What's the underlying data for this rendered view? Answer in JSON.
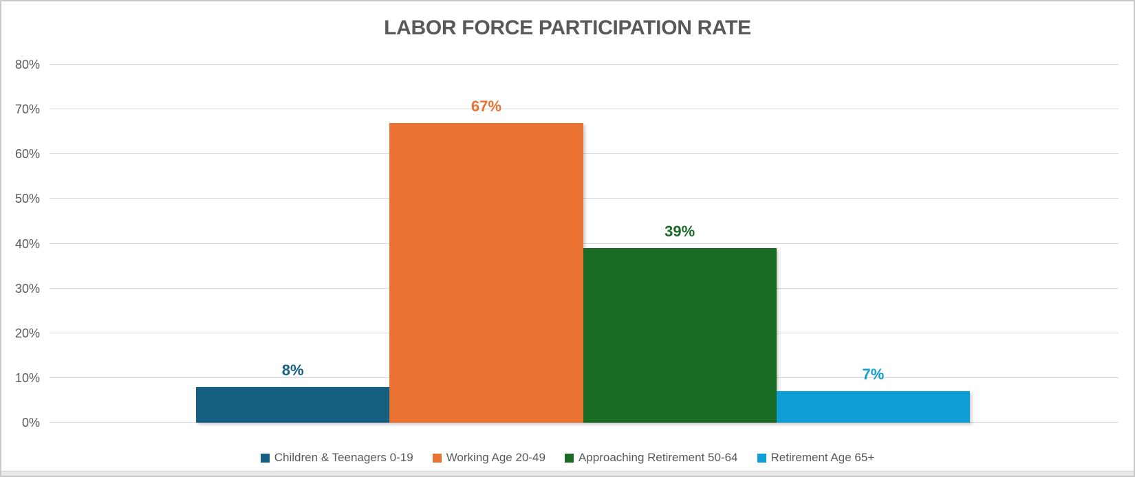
{
  "chart_data": {
    "type": "bar",
    "title": "LABOR FORCE PARTICIPATION RATE",
    "categories": [
      ""
    ],
    "series": [
      {
        "name": "Children & Teenagers 0-19",
        "values": [
          8
        ],
        "data_label": "8%",
        "color": "#156082"
      },
      {
        "name": "Working Age 20-49",
        "values": [
          67
        ],
        "data_label": "67%",
        "color": "#E97132"
      },
      {
        "name": "Approaching Retirement 50-64",
        "values": [
          39
        ],
        "data_label": "39%",
        "color": "#196B24"
      },
      {
        "name": "Retirement Age 65+",
        "values": [
          7
        ],
        "data_label": "7%",
        "color": "#0F9ED5"
      }
    ],
    "ylim": [
      0,
      80
    ],
    "yticks": [
      {
        "value": 0,
        "label": "0%"
      },
      {
        "value": 10,
        "label": "10%"
      },
      {
        "value": 20,
        "label": "20%"
      },
      {
        "value": 30,
        "label": "30%"
      },
      {
        "value": 40,
        "label": "40%"
      },
      {
        "value": 50,
        "label": "50%"
      },
      {
        "value": 60,
        "label": "60%"
      },
      {
        "value": 70,
        "label": "70%"
      },
      {
        "value": 80,
        "label": "80%"
      }
    ],
    "grid": true,
    "legend_position": "bottom"
  },
  "colors": {
    "title_text": "#595959",
    "axis_text": "#595959",
    "legend_text": "#595959",
    "gridline": "#d9d9d9",
    "canvas_border": "#c9c9c9",
    "bottom_strip": "#e8e8e8"
  }
}
